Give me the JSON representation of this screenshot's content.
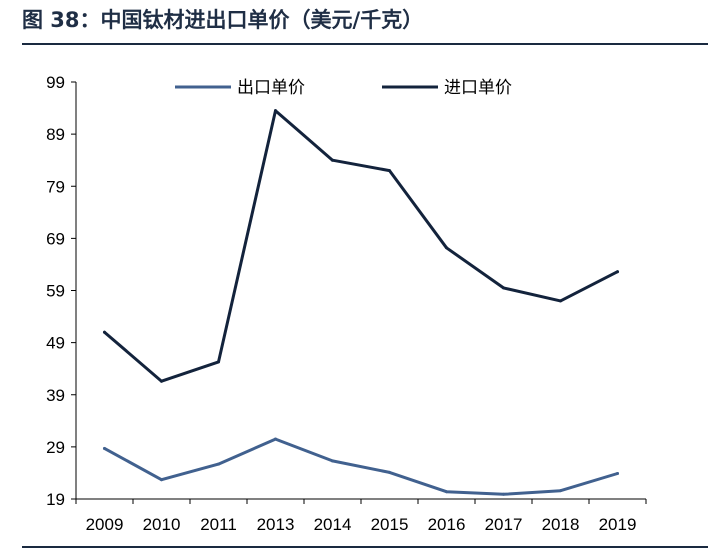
{
  "title": "图 38：中国钛材进出口单价（美元/千克）",
  "chart_data": {
    "type": "line",
    "title": "图 38：中国钛材进出口单价（美元/千克）",
    "xlabel": "",
    "ylabel": "",
    "categories": [
      "2009",
      "2010",
      "2011",
      "2013",
      "2014",
      "2015",
      "2016",
      "2017",
      "2018",
      "2019"
    ],
    "yticks": [
      "99",
      "89",
      "79",
      "69",
      "59",
      "49",
      "39",
      "29",
      "19"
    ],
    "ylim": [
      19,
      99
    ],
    "grid": false,
    "legend_position": "top",
    "series": [
      {
        "name": "出口单价",
        "color": "#41618f",
        "values": [
          28.7,
          22.7,
          25.7,
          30.5,
          26.3,
          24.1,
          20.4,
          19.9,
          20.6,
          23.9
        ]
      },
      {
        "name": "进口单价",
        "color": "#13233c",
        "values": [
          51.0,
          41.6,
          45.3,
          93.5,
          84.0,
          82.0,
          67.2,
          59.5,
          57.0,
          62.6
        ]
      }
    ]
  }
}
